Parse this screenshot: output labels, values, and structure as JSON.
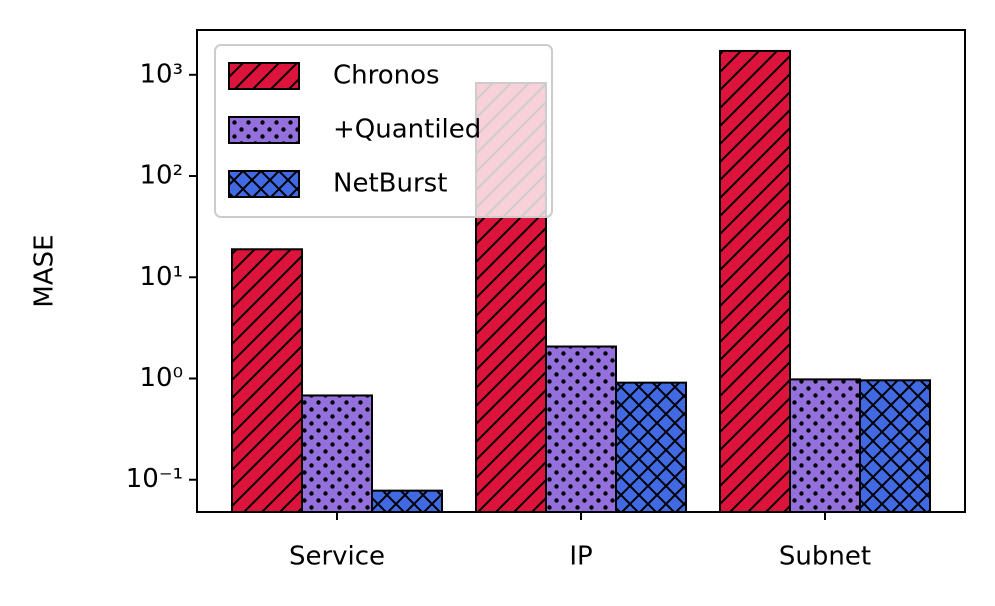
{
  "chart_data": {
    "type": "bar",
    "y_label": "MASE",
    "log_scale_y": true,
    "categories": [
      "Service",
      "IP",
      "Subnet"
    ],
    "series": [
      {
        "name": "Chronos",
        "color": "#dc143c",
        "hatch": "diagonal",
        "values": [
          18.9,
          830,
          1720
        ]
      },
      {
        "name": "+Quantiled",
        "color": "#9370db",
        "hatch": "dots",
        "values": [
          0.68,
          2.07,
          0.98
        ]
      },
      {
        "name": "NetBurst",
        "color": "#4169e1",
        "hatch": "cross",
        "values": [
          0.078,
          0.91,
          0.96
        ]
      }
    ],
    "ylim": [
      0.048,
      2770
    ],
    "yticks": [
      {
        "value": 0.1,
        "label": "10⁻¹"
      },
      {
        "value": 1,
        "label": "10⁰"
      },
      {
        "value": 10,
        "label": "10¹"
      },
      {
        "value": 100,
        "label": "10²"
      },
      {
        "value": 1000,
        "label": "10³"
      }
    ],
    "legend": "upper left"
  }
}
